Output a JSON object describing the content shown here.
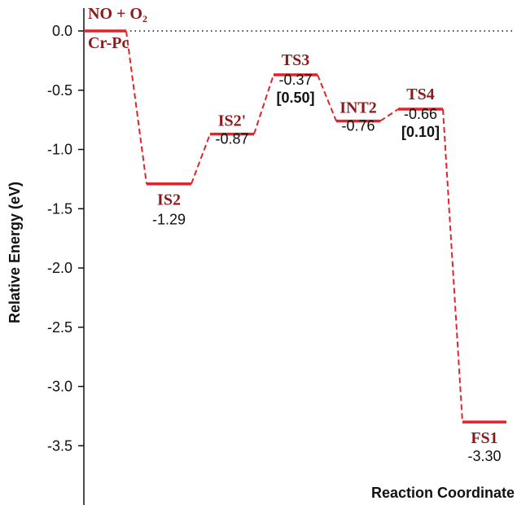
{
  "chart_data": {
    "type": "line",
    "title": "",
    "xlabel": "Reaction Coordinate",
    "ylabel": "Relative Energy (eV)",
    "ylim": [
      -4.0,
      0.1
    ],
    "yticks": [
      "0.0",
      "-0.5",
      "-1.0",
      "-1.5",
      "-2.0",
      "-2.5",
      "-3.0",
      "-3.5"
    ],
    "zero_reference": "dotted",
    "colors": {
      "path": "#e0242a",
      "label": "#8b1a1a",
      "text": "#111111"
    },
    "states": [
      {
        "name": "NO + O",
        "name_sub": "2",
        "name_below": "Cr-Pc",
        "energy": 0.0,
        "value": ""
      },
      {
        "name": "IS2",
        "energy": -1.29,
        "value": "-1.29"
      },
      {
        "name": "IS2'",
        "energy": -0.87,
        "value": "-0.87"
      },
      {
        "name": "TS3",
        "energy": -0.37,
        "value": "-0.37",
        "barrier": "[0.50]"
      },
      {
        "name": "INT2",
        "energy": -0.76,
        "value": "-0.76"
      },
      {
        "name": "TS4",
        "energy": -0.66,
        "value": "-0.66",
        "barrier": "[0.10]"
      },
      {
        "name": "FS1",
        "energy": -3.3,
        "value": "-3.30"
      }
    ]
  }
}
